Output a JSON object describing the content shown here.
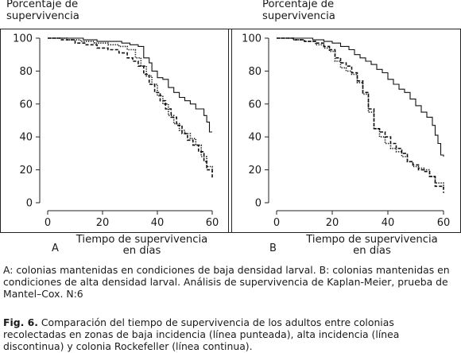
{
  "chart_data": [
    {
      "type": "line",
      "panel_label": "A",
      "ylabel": "Porcentaje de supervivencia",
      "xlabel": "Tiempo de supervivencia en días",
      "xlim": [
        0,
        60
      ],
      "ylim": [
        0,
        100
      ],
      "xticks": [
        0,
        20,
        40,
        60
      ],
      "yticks": [
        0,
        20,
        40,
        60,
        80,
        100
      ],
      "grid": false,
      "series": [
        {
          "style": "dotted",
          "x": [
            0,
            7,
            12,
            17,
            22,
            26,
            29,
            32,
            34,
            36,
            38,
            40,
            42,
            44,
            46,
            48,
            50,
            52,
            54,
            56,
            58,
            60
          ],
          "y": [
            100,
            99,
            98,
            97,
            96,
            95,
            93,
            88,
            83,
            77,
            72,
            65,
            60,
            53,
            48,
            44,
            42,
            39,
            35,
            28,
            22,
            18
          ]
        },
        {
          "style": "dashed",
          "x": [
            0,
            5,
            10,
            14,
            18,
            22,
            26,
            29,
            31,
            33,
            35,
            37,
            39,
            41,
            43,
            45,
            47,
            49,
            51,
            53,
            55,
            57,
            58,
            60
          ],
          "y": [
            100,
            99,
            97,
            96,
            94,
            93,
            91,
            88,
            86,
            83,
            78,
            72,
            67,
            62,
            57,
            52,
            47,
            42,
            38,
            35,
            31,
            25,
            20,
            15
          ]
        },
        {
          "style": "solid",
          "x": [
            0,
            8,
            13,
            18,
            23,
            27,
            30,
            33,
            35,
            37,
            38,
            40,
            42,
            44,
            46,
            48,
            50,
            52,
            54,
            56,
            57,
            58,
            59,
            60
          ],
          "y": [
            100,
            100,
            99,
            98,
            98,
            97,
            96,
            95,
            88,
            85,
            80,
            76,
            75,
            70,
            67,
            64,
            62,
            60,
            57,
            57,
            53,
            49,
            43,
            43
          ]
        }
      ]
    },
    {
      "type": "line",
      "panel_label": "B",
      "ylabel": "Porcentaje de supervivencia",
      "xlabel": "Tiempo de supervivencia en días",
      "xlim": [
        0,
        60
      ],
      "ylim": [
        0,
        100
      ],
      "xticks": [
        0,
        20,
        40,
        60
      ],
      "yticks": [
        0,
        20,
        40,
        60,
        80,
        100
      ],
      "grid": false,
      "series": [
        {
          "style": "dotted",
          "x": [
            0,
            6,
            10,
            14,
            17,
            19,
            21,
            23,
            25,
            27,
            29,
            31,
            33,
            35,
            37,
            39,
            41,
            43,
            45,
            47,
            49,
            51,
            53,
            55,
            57,
            60
          ],
          "y": [
            100,
            99,
            98,
            96,
            94,
            92,
            86,
            82,
            80,
            78,
            73,
            66,
            55,
            45,
            40,
            36,
            33,
            31,
            28,
            25,
            22,
            21,
            20,
            16,
            12,
            8
          ]
        },
        {
          "style": "dashed",
          "x": [
            0,
            6,
            10,
            14,
            17,
            19,
            21,
            23,
            25,
            27,
            29,
            31,
            33,
            35,
            37,
            39,
            41,
            43,
            45,
            47,
            49,
            51,
            53,
            55,
            57,
            60
          ],
          "y": [
            100,
            99,
            98,
            97,
            95,
            93,
            88,
            85,
            83,
            79,
            74,
            67,
            57,
            45,
            43,
            40,
            36,
            33,
            30,
            25,
            23,
            20,
            19,
            16,
            10,
            6
          ]
        },
        {
          "style": "solid",
          "x": [
            0,
            8,
            13,
            17,
            20,
            23,
            26,
            28,
            30,
            32,
            34,
            36,
            38,
            40,
            42,
            44,
            46,
            48,
            50,
            52,
            54,
            56,
            57,
            58,
            59,
            60
          ],
          "y": [
            100,
            100,
            99,
            98,
            97,
            95,
            93,
            90,
            88,
            86,
            84,
            81,
            79,
            75,
            72,
            69,
            67,
            63,
            59,
            55,
            52,
            47,
            41,
            36,
            29,
            28
          ]
        }
      ]
    }
  ],
  "captions": {
    "panels": "A: colonias mantenidas en condiciones de baja densidad larval. B: colonias mantenidas en condiciones de alta densidad larval. Análisis de supervivencia de Kaplan-Meier, prueba de Mantel–Cox. N:6",
    "figure_label": "Fig. 6.",
    "figure_text": " Comparación del tiempo de supervivencia de los adultos entre colonias recolectadas en zonas de baja incidencia (línea punteada), alta incidencia (línea discontinua) y colonia Rockefeller (línea continua)."
  }
}
